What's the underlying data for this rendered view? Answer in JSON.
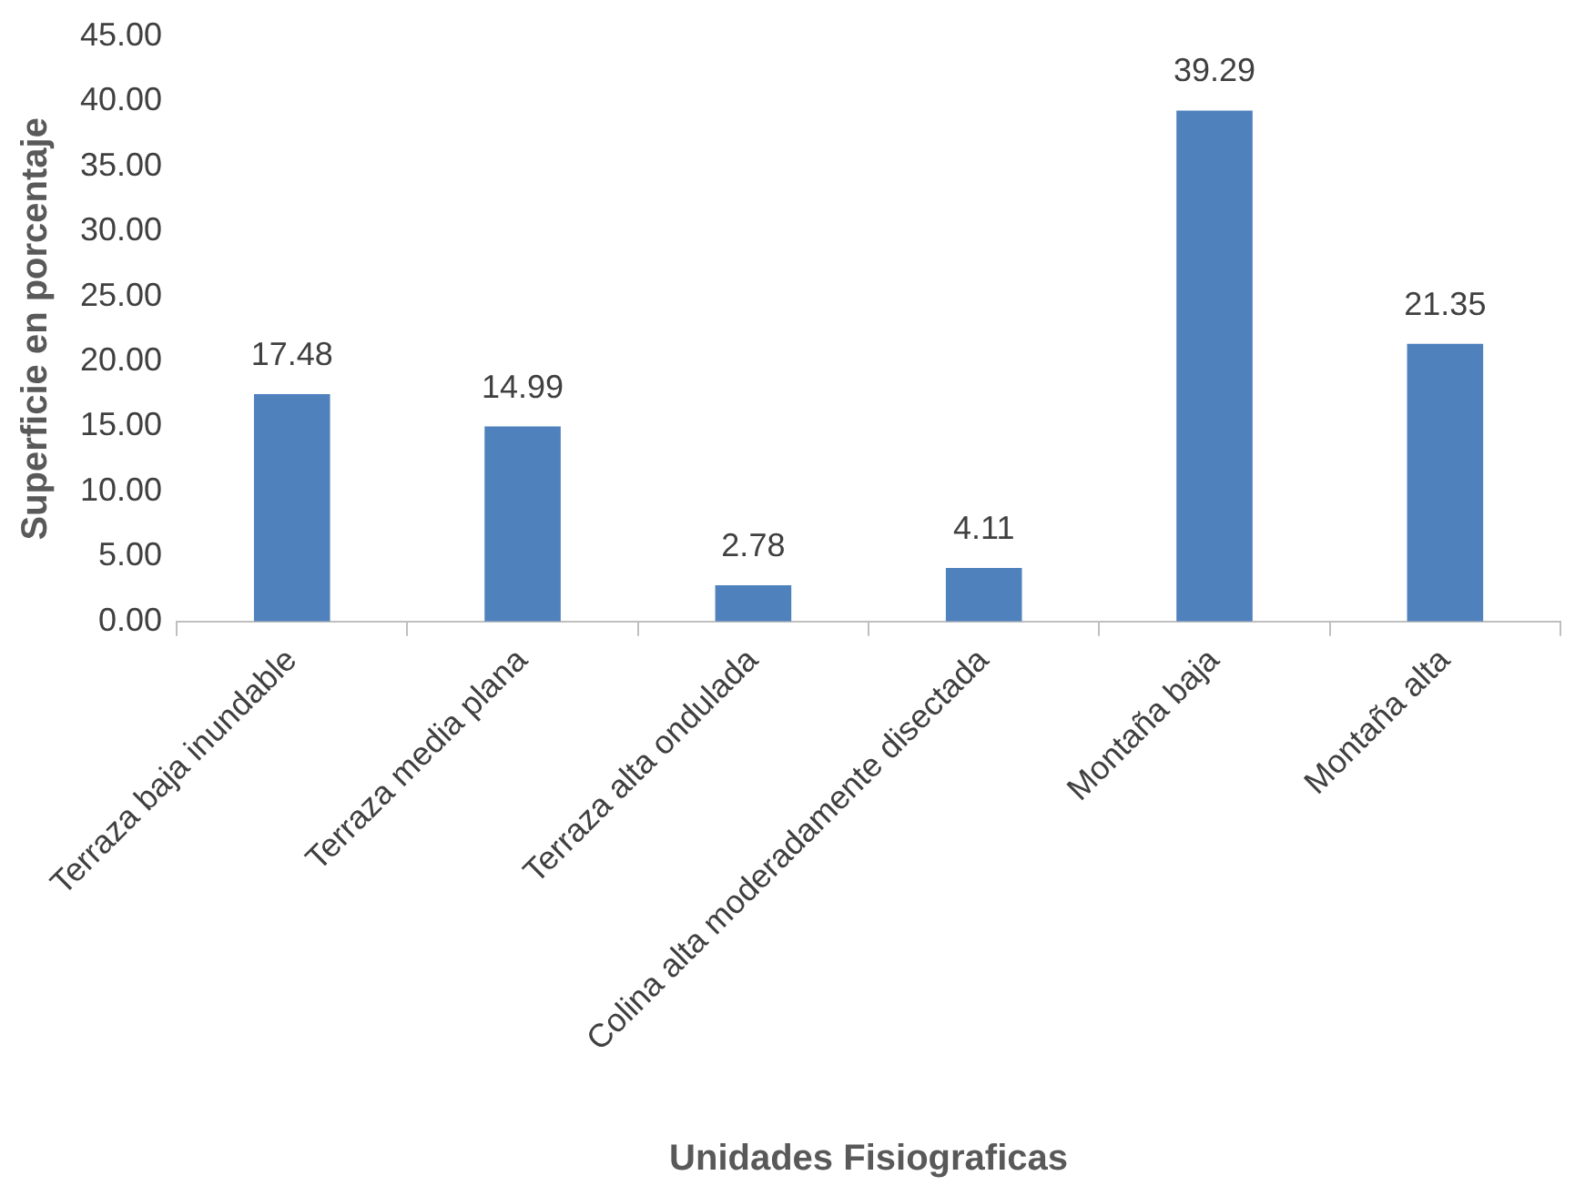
{
  "chart_data": {
    "type": "bar",
    "xlabel": "Unidades Fisiograficas",
    "ylabel": "Superficie en porcentaje",
    "categories": [
      "Terraza baja inundable",
      "Terraza media plana",
      "Terraza alta ondulada",
      "Colina alta moderadamente disectada",
      "Montaña baja",
      "Montaña alta"
    ],
    "values": [
      17.48,
      14.99,
      2.78,
      4.11,
      39.29,
      21.35
    ],
    "color": "#4f81bd",
    "ylim": [
      0,
      45
    ],
    "yticks": [
      {
        "value": 0,
        "label": "0.00"
      },
      {
        "value": 5,
        "label": "5.00"
      },
      {
        "value": 10,
        "label": "10.00"
      },
      {
        "value": 15,
        "label": "15.00"
      },
      {
        "value": 20,
        "label": "20.00"
      },
      {
        "value": 25,
        "label": "25.00"
      },
      {
        "value": 30,
        "label": "30.00"
      },
      {
        "value": 35,
        "label": "35.00"
      },
      {
        "value": 40,
        "label": "40.00"
      },
      {
        "value": 45,
        "label": "45.00"
      }
    ],
    "data_labels": true,
    "grid": false,
    "legend": false
  }
}
